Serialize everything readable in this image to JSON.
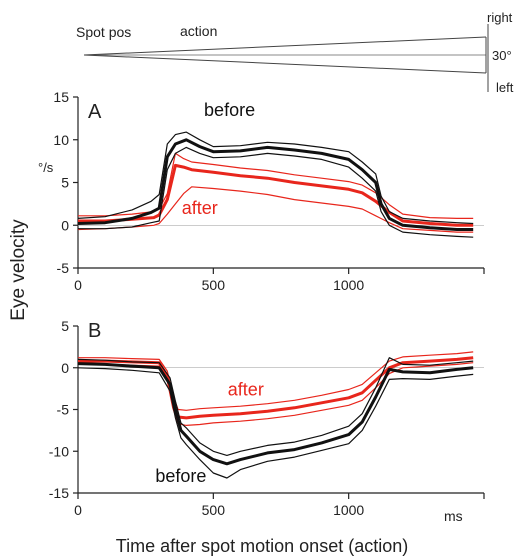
{
  "figure": {
    "stimulus": {
      "label": "Spot pos",
      "action_label": "action",
      "right_label": "right",
      "amplitude_label": "30°",
      "left_label": "left"
    },
    "shared_ylabel": "Eye velocity",
    "shared_xlabel": "Time after spot motion onset (action)",
    "unit_label": "°/s",
    "x_unit_label": "ms"
  },
  "colors": {
    "before": "#111111",
    "after": "#e8261c"
  },
  "chart_data": [
    {
      "type": "line",
      "panel_label": "A",
      "xlim": [
        0,
        1500
      ],
      "ylim": [
        -5,
        15
      ],
      "xticks": [
        0,
        500,
        1000
      ],
      "yticks": [
        -5,
        0,
        5,
        10,
        15
      ],
      "annotations": [
        {
          "text": "before",
          "x": 560,
          "y": 12.8,
          "color": "before"
        },
        {
          "text": "after",
          "x": 450,
          "y": 1.3,
          "color": "after"
        }
      ],
      "series": [
        {
          "group": "before",
          "role": "mean",
          "x": [
            0,
            100,
            200,
            270,
            300,
            330,
            360,
            400,
            450,
            500,
            600,
            700,
            800,
            900,
            1000,
            1050,
            1100,
            1120,
            1150,
            1200,
            1300,
            1400,
            1460
          ],
          "y": [
            0.2,
            0.3,
            0.8,
            1.5,
            2.0,
            8.0,
            9.5,
            10.0,
            9.2,
            8.6,
            8.7,
            9.1,
            8.8,
            8.4,
            7.7,
            6.5,
            5.0,
            2.5,
            0.8,
            0.0,
            -0.3,
            -0.5,
            -0.5
          ]
        },
        {
          "group": "before",
          "role": "upper",
          "x": [
            0,
            100,
            200,
            270,
            300,
            330,
            360,
            400,
            450,
            500,
            600,
            700,
            800,
            900,
            1000,
            1050,
            1100,
            1120,
            1150,
            1200,
            1300,
            1400,
            1460
          ],
          "y": [
            0.8,
            1.0,
            1.8,
            2.8,
            3.6,
            9.5,
            10.6,
            10.9,
            10.0,
            9.2,
            9.3,
            9.7,
            9.5,
            9.1,
            8.6,
            7.4,
            6.0,
            3.4,
            1.6,
            0.8,
            0.5,
            0.3,
            0.2
          ]
        },
        {
          "group": "before",
          "role": "lower",
          "x": [
            0,
            100,
            200,
            270,
            300,
            330,
            360,
            400,
            450,
            500,
            600,
            700,
            800,
            900,
            1000,
            1050,
            1100,
            1120,
            1150,
            1200,
            1300,
            1400,
            1460
          ],
          "y": [
            -0.4,
            -0.4,
            -0.2,
            0.3,
            0.5,
            6.5,
            8.4,
            9.1,
            8.4,
            7.9,
            8.0,
            8.4,
            8.1,
            7.7,
            6.8,
            5.5,
            4.0,
            1.6,
            0.0,
            -0.8,
            -1.1,
            -1.3,
            -1.4
          ]
        },
        {
          "group": "after",
          "role": "mean",
          "x": [
            0,
            100,
            200,
            280,
            300,
            330,
            360,
            390,
            420,
            500,
            600,
            700,
            800,
            900,
            1000,
            1050,
            1100,
            1150,
            1200,
            1300,
            1400,
            1460
          ],
          "y": [
            0.5,
            0.5,
            0.7,
            0.9,
            1.2,
            3.0,
            7.0,
            6.8,
            6.5,
            6.2,
            5.8,
            5.5,
            5.0,
            4.6,
            4.2,
            3.8,
            2.8,
            1.5,
            0.5,
            0.2,
            0.0,
            0.0
          ]
        },
        {
          "group": "after",
          "role": "upper",
          "x": [
            0,
            100,
            200,
            280,
            300,
            330,
            360,
            390,
            420,
            500,
            600,
            700,
            800,
            900,
            1000,
            1050,
            1100,
            1150,
            1200,
            1300,
            1400,
            1460
          ],
          "y": [
            1.1,
            1.1,
            1.3,
            1.6,
            1.9,
            3.7,
            8.4,
            7.8,
            7.4,
            7.1,
            6.7,
            6.4,
            5.9,
            5.5,
            5.1,
            4.7,
            3.8,
            2.4,
            1.3,
            0.9,
            0.8,
            0.8
          ]
        },
        {
          "group": "after",
          "role": "lower",
          "x": [
            0,
            100,
            200,
            280,
            300,
            330,
            360,
            390,
            420,
            500,
            600,
            700,
            800,
            900,
            1000,
            1050,
            1100,
            1150,
            1200,
            1300,
            1400,
            1460
          ],
          "y": [
            -0.5,
            -0.4,
            -0.2,
            0.0,
            0.2,
            1.3,
            2.5,
            3.7,
            4.5,
            4.3,
            4.0,
            3.6,
            3.0,
            2.6,
            2.2,
            1.9,
            1.1,
            0.3,
            -0.4,
            -0.6,
            -0.8,
            -0.8
          ]
        }
      ]
    },
    {
      "type": "line",
      "panel_label": "B",
      "xlim": [
        0,
        1500
      ],
      "ylim": [
        -15,
        5
      ],
      "xticks": [
        0,
        500,
        1000
      ],
      "yticks": [
        -15,
        -10,
        -5,
        0,
        5
      ],
      "annotations": [
        {
          "text": "after",
          "x": 620,
          "y": -3.3,
          "color": "after"
        },
        {
          "text": "before",
          "x": 380,
          "y": -13.7,
          "color": "before"
        }
      ],
      "series": [
        {
          "group": "before",
          "role": "mean",
          "x": [
            0,
            100,
            200,
            300,
            340,
            360,
            380,
            400,
            450,
            500,
            550,
            600,
            700,
            800,
            900,
            1000,
            1050,
            1100,
            1150,
            1200,
            1300,
            1400,
            1460
          ],
          "y": [
            0.5,
            0.4,
            0.2,
            0.0,
            -2.0,
            -5.0,
            -7.5,
            -8.2,
            -10.0,
            -11.0,
            -11.5,
            -11.0,
            -10.2,
            -9.8,
            -9.0,
            -8.0,
            -6.5,
            -3.5,
            -0.2,
            -0.5,
            -0.6,
            -0.2,
            0.0
          ]
        },
        {
          "group": "before",
          "role": "upper",
          "x": [
            0,
            100,
            200,
            300,
            340,
            360,
            380,
            400,
            450,
            500,
            550,
            600,
            700,
            800,
            900,
            1000,
            1050,
            1100,
            1150,
            1200,
            1300,
            1400,
            1460
          ],
          "y": [
            1.0,
            0.9,
            0.7,
            0.6,
            -1.2,
            -4.0,
            -6.6,
            -7.2,
            -9.0,
            -10.0,
            -10.5,
            -10.0,
            -9.3,
            -8.9,
            -8.1,
            -7.0,
            -5.5,
            -2.4,
            1.2,
            0.4,
            0.3,
            0.6,
            0.8
          ]
        },
        {
          "group": "before",
          "role": "lower",
          "x": [
            0,
            100,
            200,
            300,
            340,
            360,
            380,
            400,
            450,
            500,
            550,
            600,
            700,
            800,
            900,
            1000,
            1050,
            1100,
            1150,
            1200,
            1300,
            1400,
            1460
          ],
          "y": [
            0.0,
            -0.1,
            -0.3,
            -0.6,
            -2.8,
            -6.0,
            -8.4,
            -9.2,
            -11.0,
            -12.6,
            -13.2,
            -12.2,
            -11.2,
            -10.7,
            -9.9,
            -9.1,
            -7.5,
            -4.6,
            -1.4,
            -1.3,
            -1.4,
            -1.0,
            -0.8
          ]
        },
        {
          "group": "after",
          "role": "mean",
          "x": [
            0,
            100,
            200,
            300,
            330,
            350,
            370,
            400,
            450,
            500,
            600,
            700,
            800,
            900,
            1000,
            1050,
            1100,
            1150,
            1200,
            1300,
            1400,
            1460
          ],
          "y": [
            0.8,
            0.8,
            0.7,
            0.6,
            -1.0,
            -4.0,
            -5.9,
            -6.0,
            -5.8,
            -5.7,
            -5.5,
            -5.2,
            -4.8,
            -4.2,
            -3.6,
            -3.0,
            -1.5,
            0.0,
            0.6,
            0.8,
            1.0,
            1.2
          ]
        },
        {
          "group": "after",
          "role": "upper",
          "x": [
            0,
            100,
            200,
            300,
            330,
            350,
            370,
            400,
            450,
            500,
            600,
            700,
            800,
            900,
            1000,
            1050,
            1100,
            1150,
            1200,
            1300,
            1400,
            1460
          ],
          "y": [
            1.2,
            1.2,
            1.1,
            1.0,
            -0.4,
            -3.2,
            -5.0,
            -5.1,
            -4.9,
            -4.8,
            -4.6,
            -4.3,
            -3.9,
            -3.3,
            -2.6,
            -2.0,
            -0.6,
            0.8,
            1.3,
            1.5,
            1.7,
            1.9
          ]
        },
        {
          "group": "after",
          "role": "lower",
          "x": [
            0,
            100,
            200,
            300,
            330,
            350,
            370,
            400,
            450,
            500,
            600,
            700,
            800,
            900,
            1000,
            1050,
            1100,
            1150,
            1200,
            1300,
            1400,
            1460
          ],
          "y": [
            0.4,
            0.4,
            0.3,
            0.2,
            -1.6,
            -4.8,
            -6.7,
            -6.9,
            -6.8,
            -6.6,
            -6.4,
            -6.1,
            -5.7,
            -5.1,
            -4.5,
            -3.9,
            -2.4,
            -0.7,
            0.0,
            0.2,
            0.4,
            0.6
          ]
        }
      ]
    }
  ]
}
